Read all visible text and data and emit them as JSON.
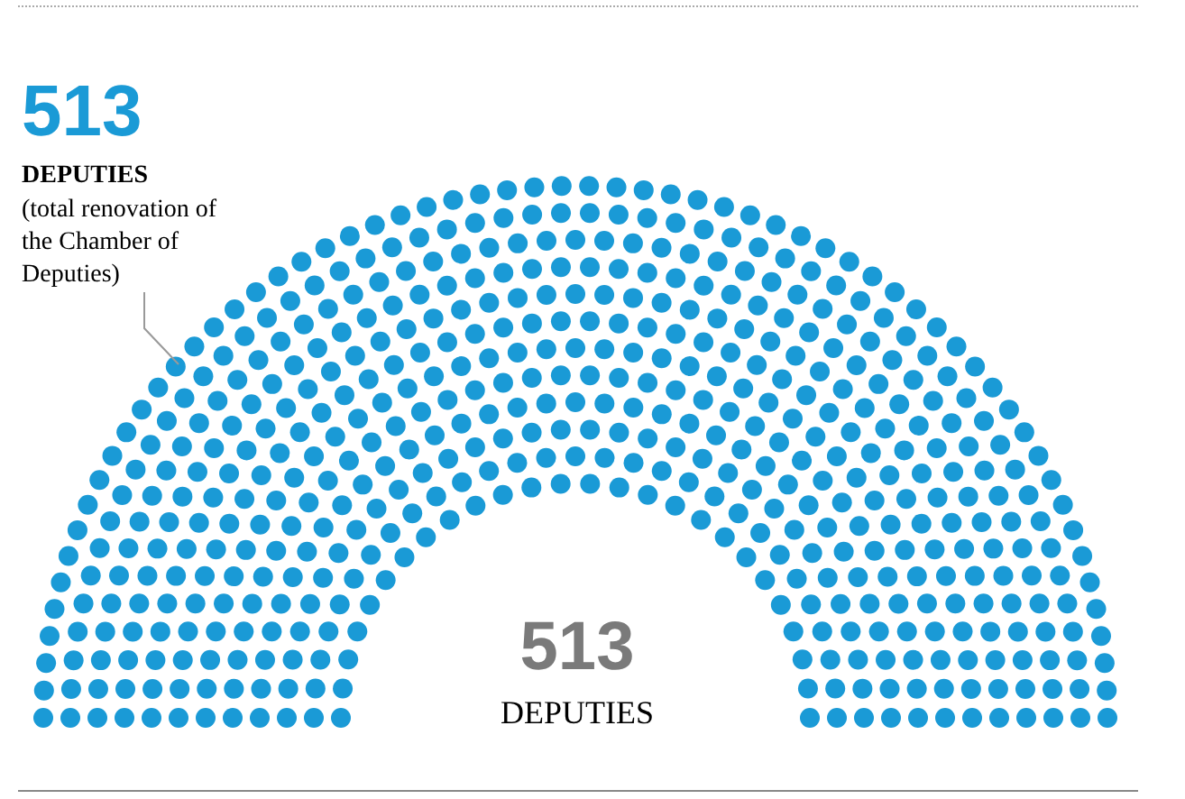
{
  "chart_data": {
    "type": "other",
    "categories": [
      "DEPUTIES"
    ],
    "values": [
      513
    ],
    "colors": [
      "#1a9ad6"
    ],
    "data_labels": true,
    "annotations": [
      "513",
      "DEPUTIES",
      "(total renovation of the Chamber of Deputies)"
    ]
  }
}
